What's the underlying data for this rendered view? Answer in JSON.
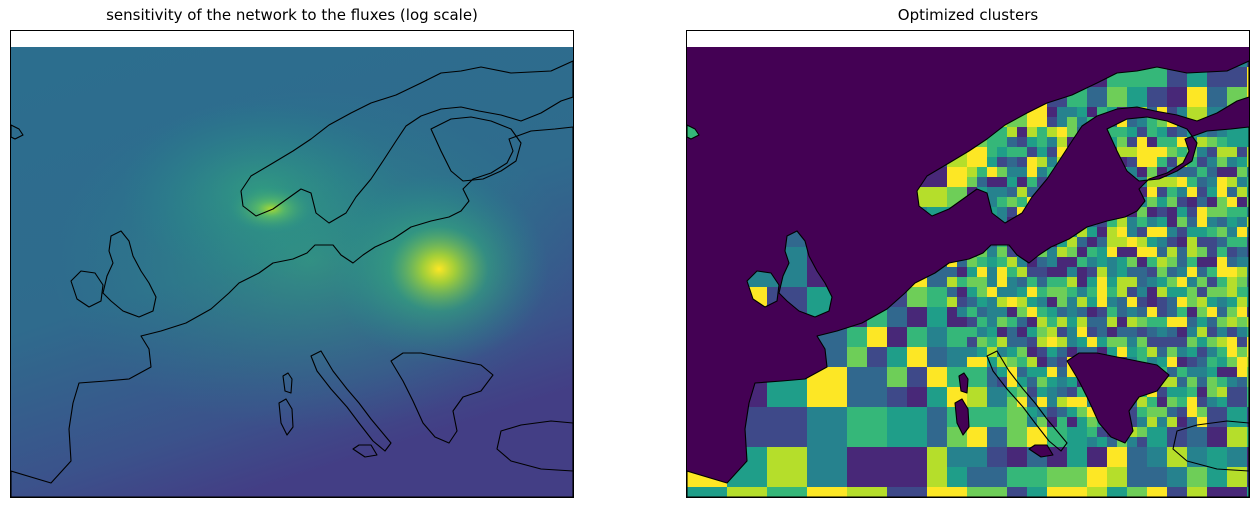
{
  "figure": {
    "panels": [
      {
        "id": "left",
        "title": "sensitivity of the network to the fluxes (log scale)",
        "layer": "sensitivity",
        "colormap": "viridis",
        "scale": "log",
        "hotspots": [
          "Scandinavia south coast",
          "Eastern Europe"
        ]
      },
      {
        "id": "right",
        "title": "Optimized clusters",
        "layer": "clusters",
        "colormap": "viridis",
        "background": "#440154"
      }
    ]
  },
  "colors": {
    "viridis": [
      "#440154",
      "#482878",
      "#3e4989",
      "#31688e",
      "#26828e",
      "#1f9e89",
      "#35b779",
      "#6ece58",
      "#b5de2b",
      "#fde725"
    ],
    "coastline": "#000000",
    "sensitivity_low": "#3b528b",
    "sensitivity_mid": "#2a788e",
    "sensitivity_high": "#fde725"
  }
}
